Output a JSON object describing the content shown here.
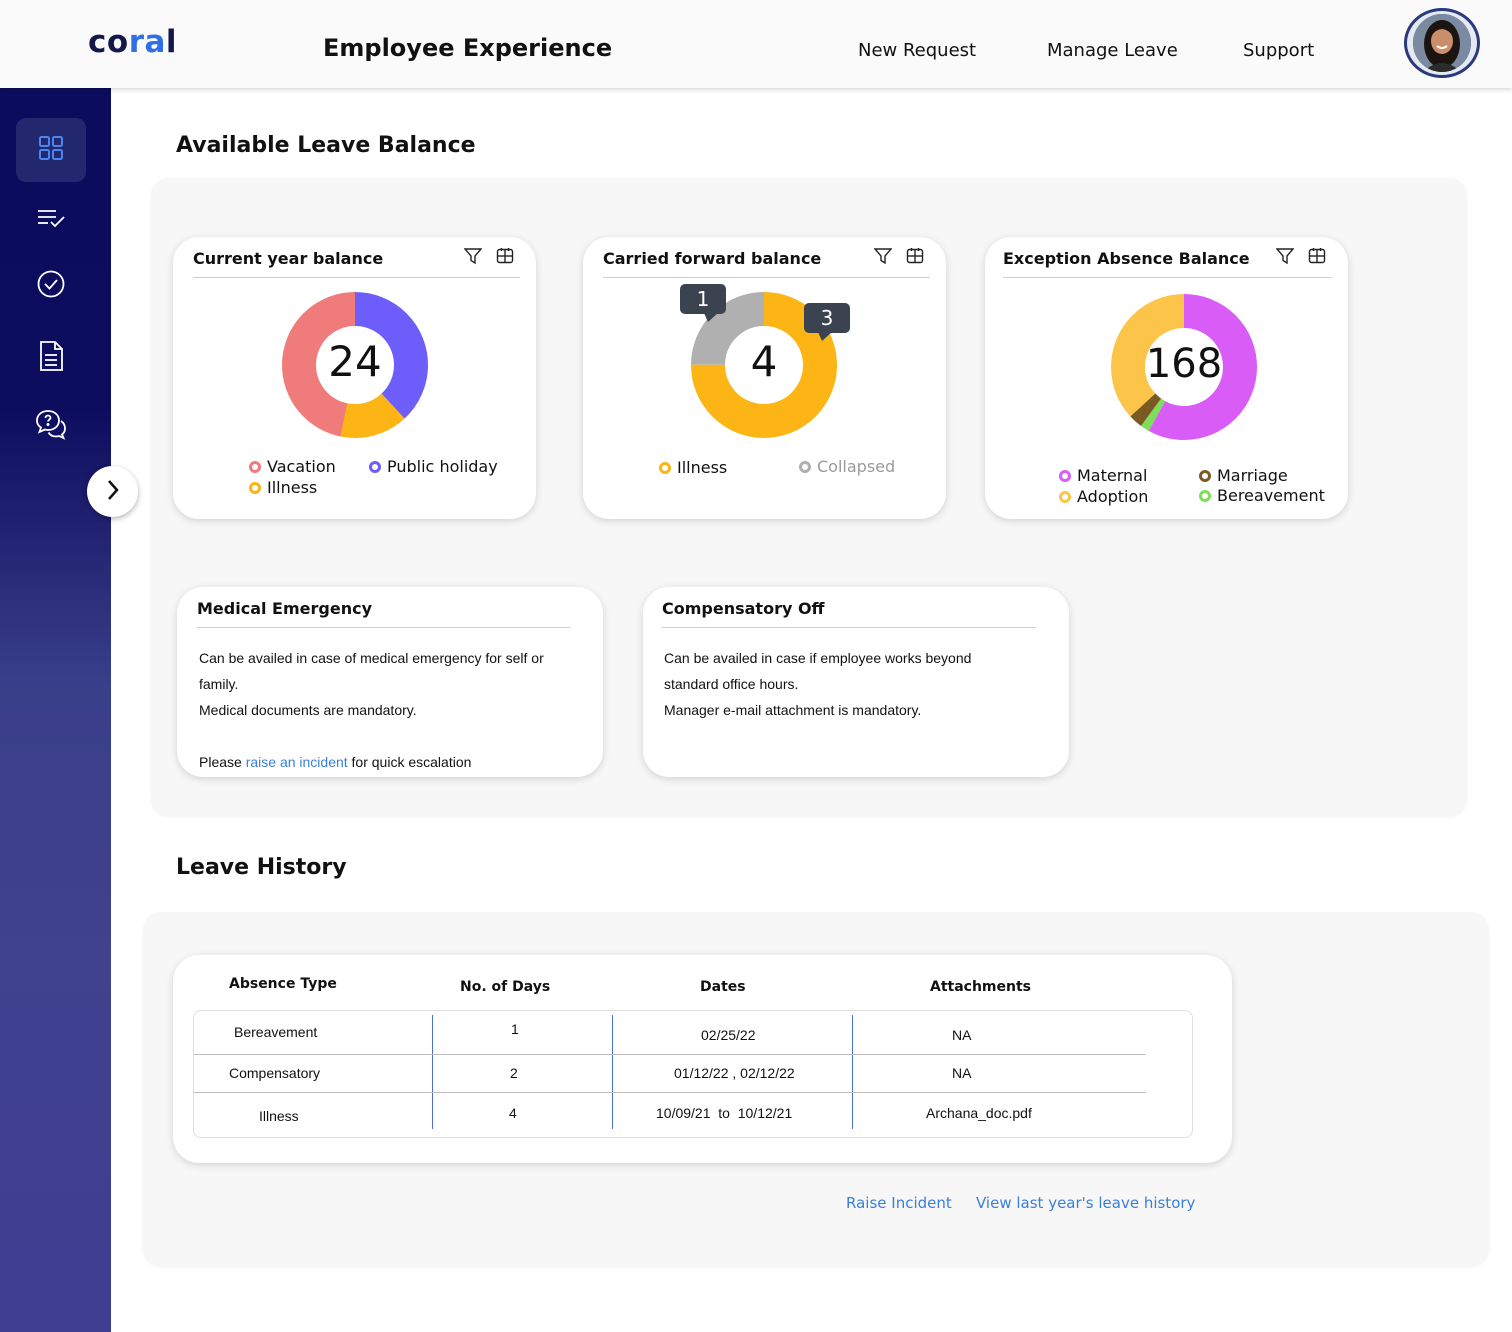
{
  "header": {
    "logo": "coral",
    "app_title": "Employee Experience",
    "nav": [
      "New Request",
      "Manage Leave",
      "Support"
    ],
    "avatar_alt": "user-avatar"
  },
  "sidebar": {
    "items": [
      {
        "name": "dashboard-grid-icon",
        "active": true
      },
      {
        "name": "checklist-icon",
        "active": false
      },
      {
        "name": "check-circle-icon",
        "active": false
      },
      {
        "name": "document-icon",
        "active": false
      },
      {
        "name": "chat-help-icon",
        "active": false
      }
    ],
    "expand": "chevron-right-icon"
  },
  "balance": {
    "section_title": "Available Leave Balance",
    "current": {
      "title": "Current year balance",
      "total": "24",
      "legend": [
        "Vacation",
        "Public holiday",
        "Illness"
      ],
      "colors": {
        "Vacation": "#f07b7b",
        "Public holiday": "#6d5dfb",
        "Illness": "#fdb515"
      },
      "share": {
        "Vacation": 0.47,
        "Public holiday": 0.38,
        "Illness": 0.15
      }
    },
    "carried": {
      "title": "Carried forward balance",
      "total": "4",
      "tooltips": [
        "1",
        "3"
      ],
      "legend": [
        "Illness",
        "Collapsed"
      ],
      "colors": {
        "Illness": "#fdb515",
        "Collapsed": "#b0b0b0"
      },
      "share": {
        "Illness": 0.75,
        "Collapsed": 0.25
      }
    },
    "exception": {
      "title": "Exception Absence Balance",
      "total": "168",
      "legend": [
        "Maternal",
        "Marriage",
        "Adoption",
        "Bereavement"
      ],
      "colors": {
        "Maternal": "#d85cf5",
        "Marriage": "#7a5a22",
        "Adoption": "#fdc44a",
        "Bereavement": "#7dde5a"
      },
      "share": {
        "Maternal": 0.58,
        "Bereavement": 0.02,
        "Marriage": 0.03,
        "Adoption": 0.37
      }
    }
  },
  "info_cards": {
    "medical": {
      "title": "Medical Emergency",
      "line1": "Can be availed in case of medical emergency for self or",
      "line2": "family.",
      "line3": "Medical documents are mandatory.",
      "line4_pre": "Please",
      "line4_link": "raise an incident",
      "line4_post": "for quick escalation"
    },
    "compoff": {
      "title": "Compensatory Off",
      "line1": "Can be availed in case if employee works beyond",
      "line2": "standard  office hours.",
      "line3": "Manager e-mail attachment is mandatory."
    }
  },
  "history": {
    "section_title": "Leave History",
    "columns": [
      "Absence Type",
      "No. of Days",
      "Dates",
      "Attachments"
    ],
    "rows": [
      {
        "type": "Bereavement",
        "days": "1",
        "dates": "02/25/22",
        "attachment": "NA"
      },
      {
        "type": "Compensatory",
        "days": "2",
        "dates": "01/12/22 , 02/12/22",
        "attachment": "NA"
      },
      {
        "type": "Illness",
        "days": "4",
        "dates": "10/09/21  to  10/12/21",
        "attachment": "Archana_doc.pdf"
      }
    ],
    "links": [
      "Raise Incident",
      "View last year's leave history"
    ]
  }
}
